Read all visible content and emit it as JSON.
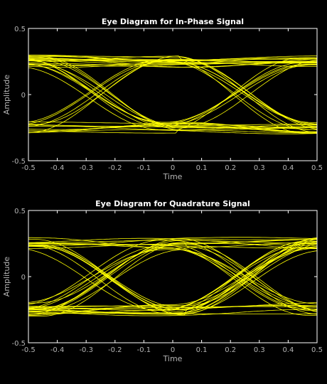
{
  "figure": {
    "background": "#000000"
  },
  "colors": {
    "trace": "#ffff00",
    "axes": "#ffffff",
    "text": "#b4b4b4",
    "title": "#ffffff"
  },
  "chart_data": [
    {
      "type": "line",
      "title": "Eye Diagram for In-Phase Signal",
      "xlabel": "Time",
      "ylabel": "Amplitude",
      "xlim": [
        -0.5,
        0.5
      ],
      "ylim": [
        -0.5,
        0.5
      ],
      "xticks": [
        -0.5,
        -0.4,
        -0.3,
        -0.2,
        -0.1,
        0,
        0.1,
        0.2,
        0.3,
        0.4,
        0.5
      ],
      "xtick_labels": [
        "-0.5",
        "-0.4",
        "-0.3",
        "-0.2",
        "-0.1",
        "0",
        "0.1",
        "0.2",
        "0.3",
        "0.4",
        "0.5"
      ],
      "yticks": [
        -0.5,
        0,
        0.5
      ],
      "ytick_labels": [
        "-0.5",
        "0",
        "0.5"
      ],
      "grid": false,
      "symbol_levels": [
        -0.25,
        0.25
      ],
      "crossing_times": [
        -0.25,
        0.25
      ],
      "sample_time": 0,
      "trace_count": 40,
      "seed": 7
    },
    {
      "type": "line",
      "title": "Eye Diagram for Quadrature Signal",
      "xlabel": "Time",
      "ylabel": "Amplitude",
      "xlim": [
        -0.5,
        0.5
      ],
      "ylim": [
        -0.5,
        0.5
      ],
      "xticks": [
        -0.5,
        -0.4,
        -0.3,
        -0.2,
        -0.1,
        0,
        0.1,
        0.2,
        0.3,
        0.4,
        0.5
      ],
      "xtick_labels": [
        "-0.5",
        "-0.4",
        "-0.3",
        "-0.2",
        "-0.1",
        "0",
        "0.1",
        "0.2",
        "0.3",
        "0.4",
        "0.5"
      ],
      "yticks": [
        -0.5,
        0,
        0.5
      ],
      "ytick_labels": [
        "-0.5",
        "0",
        "0.5"
      ],
      "grid": false,
      "symbol_levels": [
        -0.25,
        0.25
      ],
      "crossing_times": [
        -0.25,
        0.25
      ],
      "sample_time": 0,
      "trace_count": 40,
      "seed": 23
    }
  ]
}
